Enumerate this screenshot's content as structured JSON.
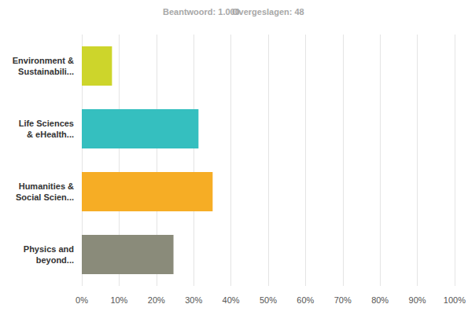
{
  "chart_data": {
    "type": "bar",
    "orientation": "horizontal",
    "annotations": [
      "Beantwoord: 1.000",
      "Overgeslagen: 48"
    ],
    "categories": [
      "Environment &\nSustainabili...",
      "Life Sciences\n& eHealth...",
      "Humanities &\nSocial Scien...",
      "Physics and\nbeyond..."
    ],
    "values": [
      8.1,
      31.3,
      35.1,
      24.6
    ],
    "colors": [
      "#cdd52b",
      "#35bfbf",
      "#f6ad25",
      "#8a8b7a"
    ],
    "xlim": [
      0,
      100
    ],
    "xticks": [
      {
        "value": 0,
        "label": "0%"
      },
      {
        "value": 10,
        "label": "10%"
      },
      {
        "value": 20,
        "label": "20%"
      },
      {
        "value": 30,
        "label": "30%"
      },
      {
        "value": 40,
        "label": "40%"
      },
      {
        "value": 50,
        "label": "50%"
      },
      {
        "value": 60,
        "label": "60%"
      },
      {
        "value": 70,
        "label": "70%"
      },
      {
        "value": 80,
        "label": "80%"
      },
      {
        "value": 90,
        "label": "90%"
      },
      {
        "value": 100,
        "label": "100%"
      }
    ],
    "grid": true
  }
}
